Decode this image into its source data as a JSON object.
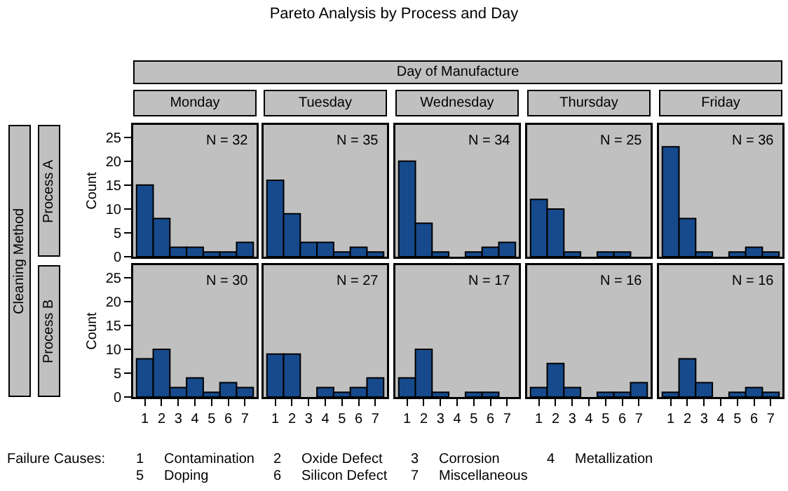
{
  "chart_data": [
    {
      "type": "bar",
      "title": "Monday",
      "ylabel": "Count",
      "categories": [
        "1",
        "2",
        "3",
        "4",
        "5",
        "6",
        "7"
      ],
      "values": [
        15,
        8,
        2,
        2,
        1,
        1,
        3
      ],
      "color": "#164a8c",
      "ylim": [
        0,
        27.6
      ],
      "yticks": [
        0,
        5,
        10,
        15,
        20,
        25
      ],
      "tick_labels": "y",
      "annotations": [
        "N = 32",
        "Pareto Analysis by Process and Day",
        "Day of Manufacture",
        "Cleaning Method",
        "Process A",
        "Failure Causes:",
        "1",
        "Contamination",
        "2",
        "Oxide Defect",
        "3",
        "Corrosion",
        "4",
        "Metallization",
        "5",
        "Doping",
        "6",
        "Silicon Defect",
        "7",
        "Miscellaneous"
      ]
    },
    {
      "type": "bar",
      "title": "Tuesday",
      "categories": [
        "1",
        "2",
        "3",
        "4",
        "5",
        "6",
        "7"
      ],
      "values": [
        16,
        9,
        3,
        3,
        1,
        2,
        1
      ],
      "color": "#164a8c",
      "ylim": [
        0,
        27.6
      ],
      "yticks": [
        0,
        5,
        10,
        15,
        20,
        25
      ],
      "tick_labels": false,
      "annotations": [
        "N = 35"
      ]
    },
    {
      "type": "bar",
      "title": "Wednesday",
      "categories": [
        "1",
        "2",
        "3",
        "4",
        "5",
        "6",
        "7"
      ],
      "values": [
        20,
        7,
        1,
        0,
        1,
        2,
        3
      ],
      "color": "#164a8c",
      "ylim": [
        0,
        27.6
      ],
      "yticks": [
        0,
        5,
        10,
        15,
        20,
        25
      ],
      "tick_labels": false,
      "annotations": [
        "N = 34"
      ]
    },
    {
      "type": "bar",
      "title": "Thursday",
      "categories": [
        "1",
        "2",
        "3",
        "4",
        "5",
        "6",
        "7"
      ],
      "values": [
        12,
        10,
        1,
        0,
        1,
        1,
        0
      ],
      "color": "#164a8c",
      "ylim": [
        0,
        27.6
      ],
      "yticks": [
        0,
        5,
        10,
        15,
        20,
        25
      ],
      "tick_labels": false,
      "annotations": [
        "N = 25"
      ]
    },
    {
      "type": "bar",
      "title": "Friday",
      "categories": [
        "1",
        "2",
        "3",
        "4",
        "5",
        "6",
        "7"
      ],
      "values": [
        23,
        8,
        1,
        0,
        1,
        2,
        1
      ],
      "color": "#164a8c",
      "ylim": [
        0,
        27.6
      ],
      "yticks": [
        0,
        5,
        10,
        15,
        20,
        25
      ],
      "tick_labels": false,
      "annotations": [
        "N = 36"
      ]
    },
    {
      "type": "bar",
      "ylabel": "Count",
      "categories": [
        "1",
        "2",
        "3",
        "4",
        "5",
        "6",
        "7"
      ],
      "values": [
        8,
        10,
        2,
        4,
        1,
        3,
        2
      ],
      "color": "#164a8c",
      "ylim": [
        0,
        27.6
      ],
      "yticks": [
        0,
        5,
        10,
        15,
        20,
        25
      ],
      "annotations": [
        "N = 30",
        "Process B"
      ]
    },
    {
      "type": "bar",
      "categories": [
        "1",
        "2",
        "3",
        "4",
        "5",
        "6",
        "7"
      ],
      "values": [
        9,
        9,
        0,
        2,
        1,
        2,
        4
      ],
      "color": "#164a8c",
      "ylim": [
        0,
        27.6
      ],
      "yticks": [
        0,
        5,
        10,
        15,
        20,
        25
      ],
      "tick_labels": "x",
      "annotations": [
        "N = 27"
      ]
    },
    {
      "type": "bar",
      "categories": [
        "1",
        "2",
        "3",
        "4",
        "5",
        "6",
        "7"
      ],
      "values": [
        4,
        10,
        1,
        0,
        1,
        1,
        0
      ],
      "color": "#164a8c",
      "ylim": [
        0,
        27.6
      ],
      "yticks": [
        0,
        5,
        10,
        15,
        20,
        25
      ],
      "tick_labels": "x",
      "annotations": [
        "N = 17"
      ]
    },
    {
      "type": "bar",
      "categories": [
        "1",
        "2",
        "3",
        "4",
        "5",
        "6",
        "7"
      ],
      "values": [
        2,
        7,
        2,
        0,
        1,
        1,
        3
      ],
      "color": "#164a8c",
      "ylim": [
        0,
        27.6
      ],
      "yticks": [
        0,
        5,
        10,
        15,
        20,
        25
      ],
      "tick_labels": "x",
      "annotations": [
        "N = 16"
      ]
    },
    {
      "type": "bar",
      "categories": [
        "1",
        "2",
        "3",
        "4",
        "5",
        "6",
        "7"
      ],
      "values": [
        1,
        8,
        3,
        0,
        1,
        2,
        1
      ],
      "color": "#164a8c",
      "ylim": [
        0,
        27.6
      ],
      "yticks": [
        0,
        5,
        10,
        15,
        20,
        25
      ],
      "tick_labels": "x",
      "annotations": [
        "N = 16"
      ]
    }
  ]
}
